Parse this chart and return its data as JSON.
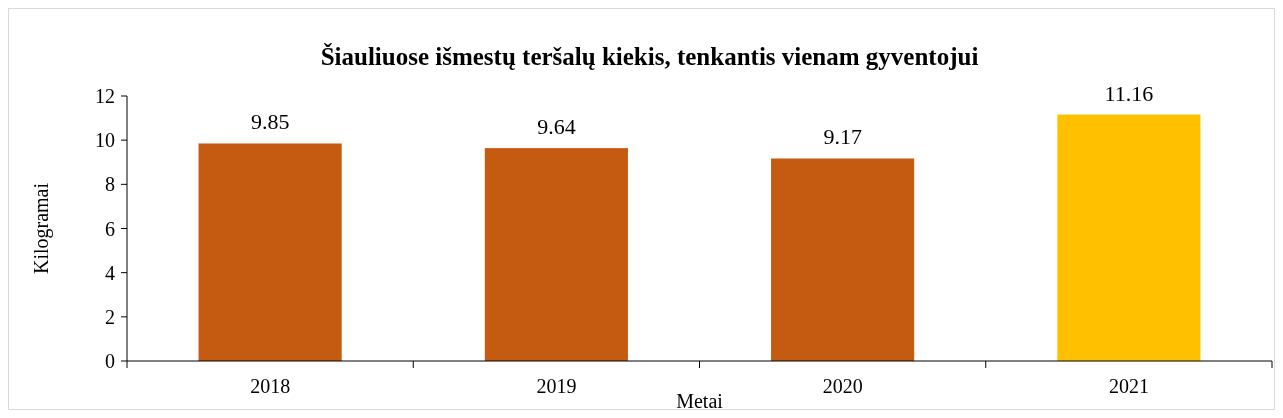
{
  "chart_data": {
    "type": "bar",
    "title": "Šiauliuose išmestų teršalų kiekis, tenkantis vienam gyventojui",
    "xlabel": "Metai",
    "ylabel": "Kilogramai",
    "categories": [
      "2018",
      "2019",
      "2020",
      "2021"
    ],
    "values": [
      9.85,
      9.64,
      9.17,
      11.16
    ],
    "colors": [
      "#c55a11",
      "#c55a11",
      "#c55a11",
      "#ffc000"
    ],
    "ylim": [
      0,
      12
    ],
    "yticks": [
      0,
      2,
      4,
      6,
      8,
      10,
      12
    ],
    "data_labels": true,
    "grid": false
  }
}
